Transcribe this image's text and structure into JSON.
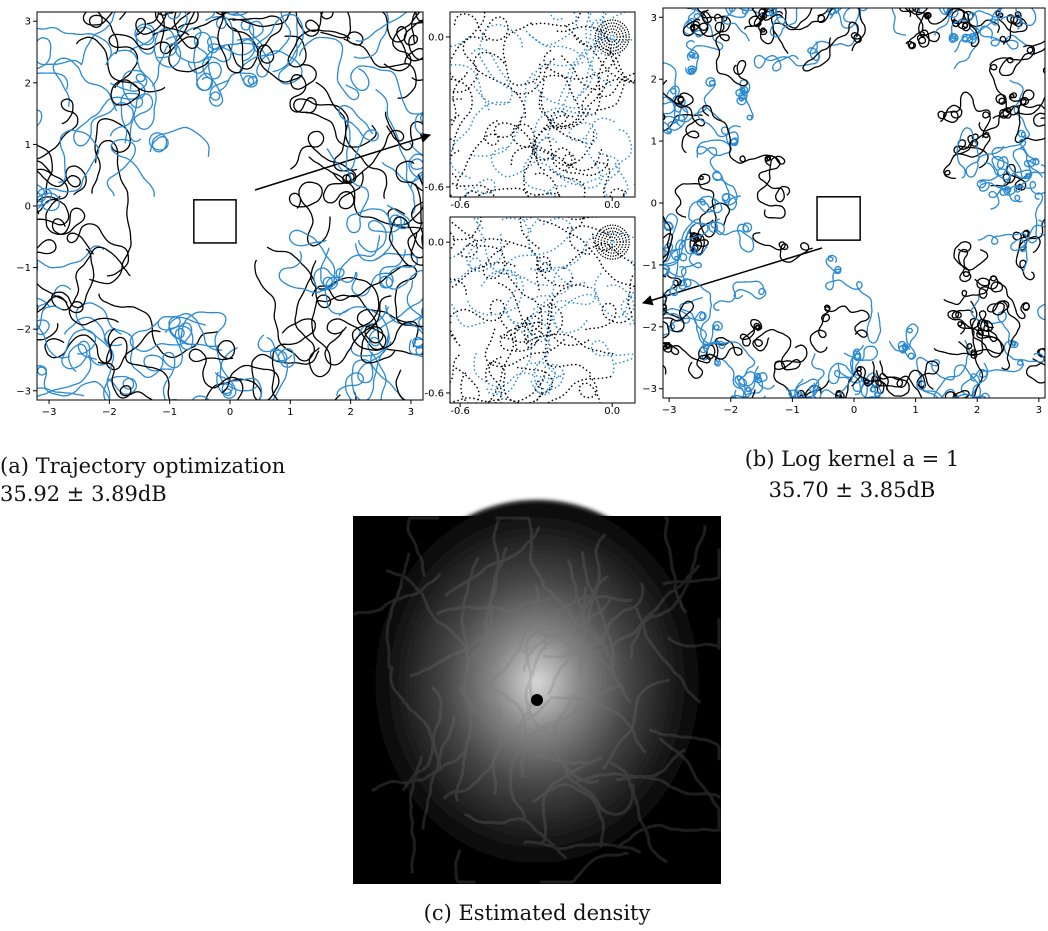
{
  "panels": [
    {
      "xlim": [
        -3.2,
        3.2
      ],
      "ylim": [
        -3.15,
        3.15
      ],
      "xticks": [
        {
          "value": -3,
          "label": "−3"
        },
        {
          "value": -2,
          "label": "−2"
        },
        {
          "value": -1,
          "label": "−1"
        },
        0,
        1,
        2,
        3
      ],
      "yticks": [
        {
          "value": -3,
          "label": "−3"
        },
        {
          "value": -2,
          "label": "−2"
        },
        {
          "value": -1,
          "label": "−1"
        },
        0,
        1,
        2,
        3
      ]
    },
    {
      "xlim": [
        -0.64,
        0.09
      ],
      "ylim": [
        -0.64,
        0.1
      ],
      "xticks": [
        {
          "value": -0.6,
          "label": "-0.6"
        },
        {
          "value": 0,
          "label": "0.0"
        }
      ],
      "yticks": [
        {
          "value": -0.6,
          "label": "-0.6"
        },
        {
          "value": 0,
          "label": "0.0"
        }
      ]
    },
    {
      "xlim": [
        -0.64,
        0.09
      ],
      "ylim": [
        -0.64,
        0.1
      ],
      "xticks": [
        {
          "value": -0.6,
          "label": "-0.6"
        },
        {
          "value": 0,
          "label": "0.0"
        }
      ],
      "yticks": [
        {
          "value": -0.6,
          "label": "-0.6"
        },
        {
          "value": 0,
          "label": "0.0"
        }
      ]
    },
    {
      "xlim": [
        -3.1,
        3.1
      ],
      "ylim": [
        -3.15,
        3.15
      ],
      "xticks": [
        {
          "value": -3,
          "label": "−3"
        },
        {
          "value": -2,
          "label": "−2"
        },
        {
          "value": -1,
          "label": "−1"
        },
        0,
        1,
        2,
        3
      ],
      "yticks": [
        {
          "value": -3,
          "label": "−3"
        },
        {
          "value": -2,
          "label": "−2"
        },
        {
          "value": -1,
          "label": "−1"
        },
        0,
        1,
        2,
        3
      ]
    }
  ],
  "captions": {
    "a": [
      "(a) Trajectory optimization",
      "35.92 ± 3.89dB"
    ],
    "b": [
      "(b) Log kernel a = 1",
      "35.70 ± 3.85dB"
    ],
    "c": [
      "(c) Estimated density"
    ]
  }
}
